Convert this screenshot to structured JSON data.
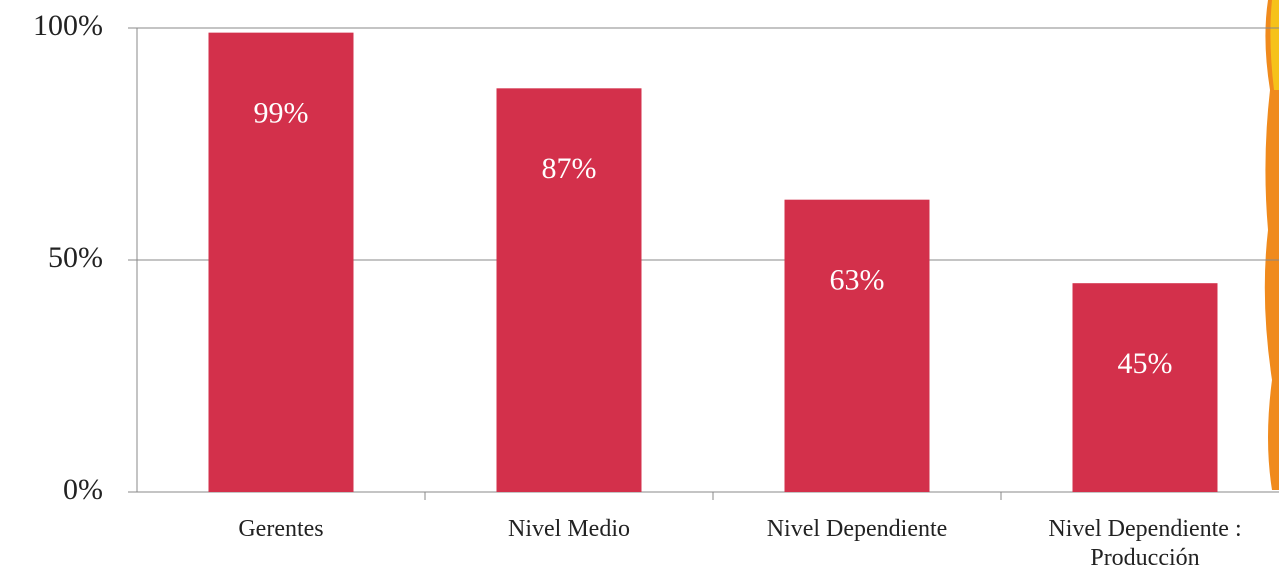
{
  "chart_data": {
    "type": "bar",
    "categories": [
      "Gerentes",
      "Nivel Medio",
      "Nivel Dependiente",
      "Nivel Dependiente : Producción"
    ],
    "values": [
      99,
      87,
      63,
      45
    ],
    "value_labels": [
      "99%",
      "87%",
      "63%",
      "45%"
    ],
    "color": "#d3304b",
    "ylim": [
      0,
      100
    ],
    "yticks": [
      {
        "value": 0,
        "label": "0%"
      },
      {
        "value": 50,
        "label": "50%"
      },
      {
        "value": 100,
        "label": "100%"
      }
    ],
    "grid": true
  }
}
